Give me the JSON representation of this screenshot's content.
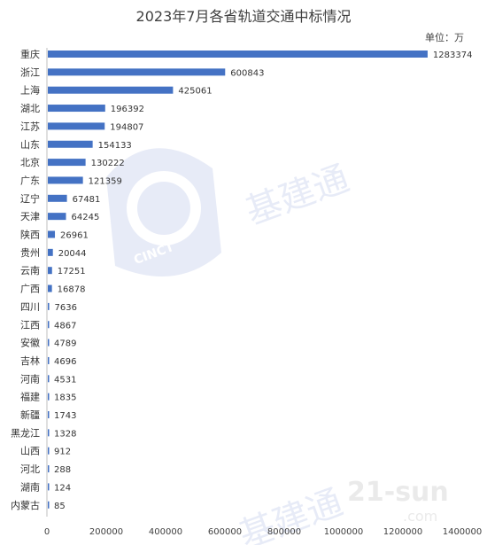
{
  "chart_data": {
    "type": "bar",
    "orientation": "horizontal",
    "title": "2023年7月各省轨道交通中标情况",
    "unit_label": "单位：万",
    "categories": [
      "重庆",
      "浙江",
      "上海",
      "湖北",
      "江苏",
      "山东",
      "北京",
      "广东",
      "辽宁",
      "天津",
      "陕西",
      "贵州",
      "云南",
      "广西",
      "四川",
      "江西",
      "安徽",
      "吉林",
      "河南",
      "福建",
      "新疆",
      "黑龙江",
      "山西",
      "河北",
      "湖南",
      "内蒙古"
    ],
    "values": [
      1283374,
      600843,
      425061,
      196392,
      194807,
      154133,
      130222,
      121359,
      67481,
      64245,
      26961,
      20044,
      17251,
      16878,
      7636,
      4867,
      4789,
      4696,
      4531,
      1835,
      1743,
      1328,
      912,
      288,
      124,
      85
    ],
    "xlim": [
      0,
      1400000
    ],
    "x_ticks": [
      "0",
      "200000",
      "400000",
      "600000",
      "800000",
      "1000000",
      "1200000",
      "1400000"
    ],
    "bar_color": "#4472c4",
    "grid": false,
    "watermark_text": [
      "基建通",
      "CINCT",
      "21-sun",
      ".com"
    ]
  }
}
